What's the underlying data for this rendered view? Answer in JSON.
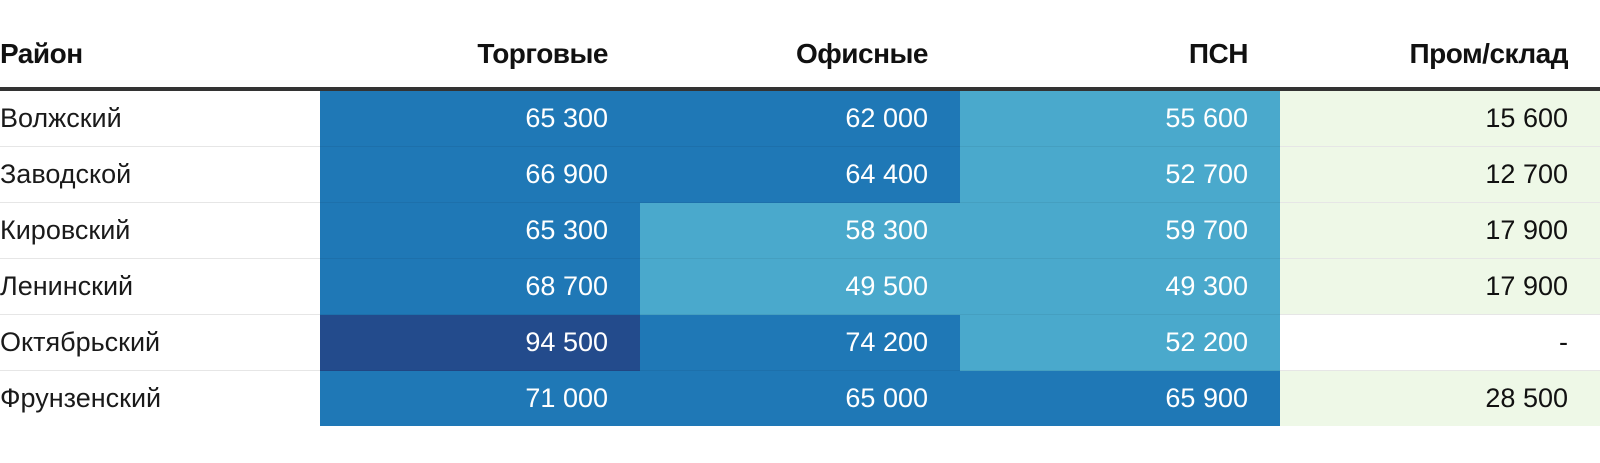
{
  "chart_data": {
    "type": "table",
    "columns": [
      "Район",
      "Торговые",
      "Офисные",
      "ПСН",
      "Пром/склад"
    ],
    "rows": [
      {
        "name": "Волжский",
        "values": [
          "65 300",
          "62 000",
          "55 600",
          "15 600"
        ],
        "levels": [
          2,
          2,
          1,
          0
        ]
      },
      {
        "name": "Заводской",
        "values": [
          "66 900",
          "64 400",
          "52 700",
          "12 700"
        ],
        "levels": [
          2,
          2,
          1,
          0
        ]
      },
      {
        "name": "Кировский",
        "values": [
          "65 300",
          "58 300",
          "59 700",
          "17 900"
        ],
        "levels": [
          2,
          1,
          1,
          0
        ]
      },
      {
        "name": "Ленинский",
        "values": [
          "68 700",
          "49 500",
          "49 300",
          "17 900"
        ],
        "levels": [
          2,
          1,
          1,
          0
        ]
      },
      {
        "name": "Октябрьский",
        "values": [
          "94 500",
          "74 200",
          "52 200",
          "-"
        ],
        "levels": [
          3,
          2,
          1,
          -1
        ]
      },
      {
        "name": "Фрунзенский",
        "values": [
          "71 000",
          "65 000",
          "65 900",
          "28 500"
        ],
        "levels": [
          2,
          2,
          2,
          0
        ]
      }
    ]
  },
  "colors": {
    "level_0": "#eef8e7",
    "level_1": "#4aa9cc",
    "level_2": "#1f78b6",
    "level_3": "#234b8c",
    "level_none": "#ffffff",
    "text_dark": "#111111",
    "text_light": "#ffffff"
  }
}
